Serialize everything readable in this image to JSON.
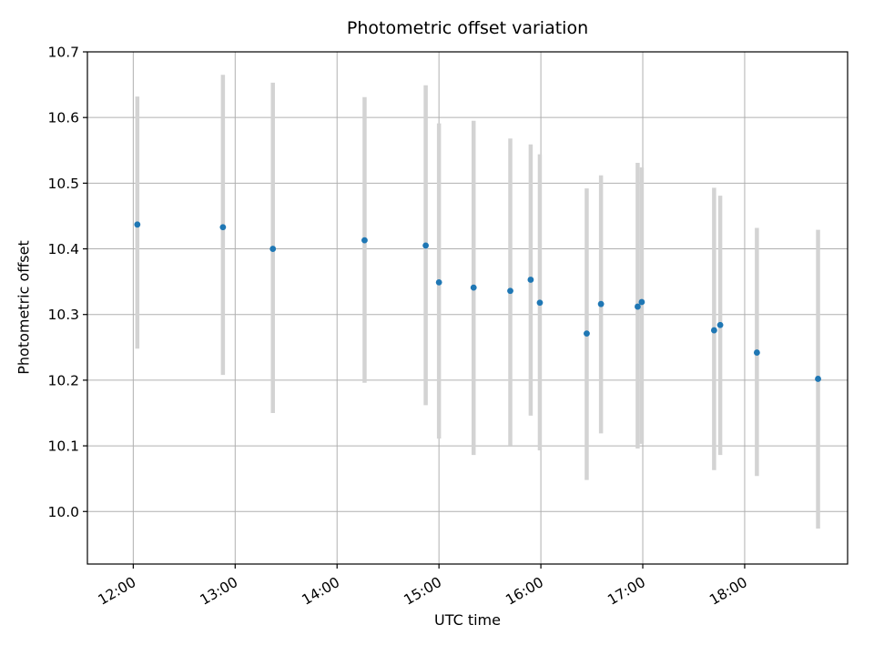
{
  "chart_data": {
    "type": "scatter",
    "title": "Photometric offset variation",
    "xlabel": "UTC time",
    "ylabel": "Photometric offset",
    "grid": true,
    "legend": "none",
    "marker_color": "#1f77b4",
    "errorbar_color": "#d3d3d3",
    "grid_color": "#b0b0b0",
    "spine_color": "#000000",
    "xlim": [
      11.55,
      19.01
    ],
    "ylim": [
      9.92,
      10.7
    ],
    "x_ticks": [
      {
        "value": 12,
        "label": "12:00"
      },
      {
        "value": 13,
        "label": "13:00"
      },
      {
        "value": 14,
        "label": "14:00"
      },
      {
        "value": 15,
        "label": "15:00"
      },
      {
        "value": 16,
        "label": "16:00"
      },
      {
        "value": 17,
        "label": "17:00"
      },
      {
        "value": 18,
        "label": "18:00"
      }
    ],
    "y_ticks": [
      {
        "value": 10.0,
        "label": "10.0"
      },
      {
        "value": 10.1,
        "label": "10.1"
      },
      {
        "value": 10.2,
        "label": "10.2"
      },
      {
        "value": 10.3,
        "label": "10.3"
      },
      {
        "value": 10.4,
        "label": "10.4"
      },
      {
        "value": 10.5,
        "label": "10.5"
      },
      {
        "value": 10.6,
        "label": "10.6"
      },
      {
        "value": 10.7,
        "label": "10.7"
      }
    ],
    "points": [
      {
        "utc": "12:02",
        "x": 12.04,
        "y": 10.437,
        "y_err_low": 10.248,
        "y_err_high": 10.632
      },
      {
        "utc": "12:53",
        "x": 12.88,
        "y": 10.433,
        "y_err_low": 10.208,
        "y_err_high": 10.665
      },
      {
        "utc": "13:22",
        "x": 13.37,
        "y": 10.4,
        "y_err_low": 10.15,
        "y_err_high": 10.653
      },
      {
        "utc": "14:16",
        "x": 14.27,
        "y": 10.413,
        "y_err_low": 10.196,
        "y_err_high": 10.631
      },
      {
        "utc": "14:52",
        "x": 14.87,
        "y": 10.405,
        "y_err_low": 10.162,
        "y_err_high": 10.649
      },
      {
        "utc": "15:00",
        "x": 15.0,
        "y": 10.349,
        "y_err_low": 10.111,
        "y_err_high": 10.591
      },
      {
        "utc": "15:20",
        "x": 15.34,
        "y": 10.341,
        "y_err_low": 10.086,
        "y_err_high": 10.595
      },
      {
        "utc": "15:42",
        "x": 15.7,
        "y": 10.336,
        "y_err_low": 10.101,
        "y_err_high": 10.568
      },
      {
        "utc": "15:54",
        "x": 15.9,
        "y": 10.353,
        "y_err_low": 10.146,
        "y_err_high": 10.559
      },
      {
        "utc": "15:59",
        "x": 15.99,
        "y": 10.318,
        "y_err_low": 10.093,
        "y_err_high": 10.544
      },
      {
        "utc": "16:27",
        "x": 16.45,
        "y": 10.271,
        "y_err_low": 10.048,
        "y_err_high": 10.492
      },
      {
        "utc": "16:35",
        "x": 16.59,
        "y": 10.316,
        "y_err_low": 10.119,
        "y_err_high": 10.512
      },
      {
        "utc": "16:57",
        "x": 16.95,
        "y": 10.312,
        "y_err_low": 10.096,
        "y_err_high": 10.531
      },
      {
        "utc": "16:59",
        "x": 16.99,
        "y": 10.319,
        "y_err_low": 10.103,
        "y_err_high": 10.524
      },
      {
        "utc": "17:42",
        "x": 17.7,
        "y": 10.276,
        "y_err_low": 10.063,
        "y_err_high": 10.493
      },
      {
        "utc": "17:45",
        "x": 17.76,
        "y": 10.284,
        "y_err_low": 10.086,
        "y_err_high": 10.481
      },
      {
        "utc": "18:07",
        "x": 18.12,
        "y": 10.242,
        "y_err_low": 10.054,
        "y_err_high": 10.432
      },
      {
        "utc": "18:43",
        "x": 18.72,
        "y": 10.202,
        "y_err_low": 9.974,
        "y_err_high": 10.429
      }
    ]
  }
}
